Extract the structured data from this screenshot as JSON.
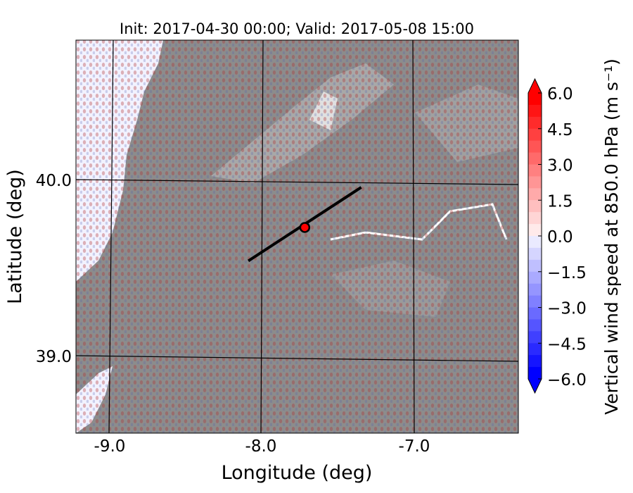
{
  "title": "Init: 2017-04-30 00:00; Valid: 2017-05-08 15:00",
  "xlabel": "Longitude (deg)",
  "ylabel": "Latitude (deg)",
  "xticks": [
    "-9.0",
    "-8.0",
    "-7.0"
  ],
  "yticks": [
    "40.0",
    "39.0"
  ],
  "colorbar": {
    "label": "Vertical wind speed at 850.0 hPa (m s⁻¹)",
    "ticks": [
      "6.0",
      "4.5",
      "3.0",
      "1.5",
      "0.0",
      "−1.5",
      "−3.0",
      "−4.5",
      "−6.0"
    ],
    "min": -6.0,
    "max": 6.0,
    "levels": 24,
    "extend": "both",
    "colormap": "bwr"
  },
  "map": {
    "lon_range": [
      -9.25,
      -6.35
    ],
    "lat_range": [
      38.45,
      40.8
    ],
    "transect": {
      "start": [
        -8.12,
        39.48
      ],
      "end": [
        -7.38,
        39.92
      ]
    },
    "point": {
      "lon": -7.75,
      "lat": 39.68,
      "color": "#ff0000"
    },
    "land_color": "#8c8c8c",
    "sea_color": "#f2f2ff"
  }
}
